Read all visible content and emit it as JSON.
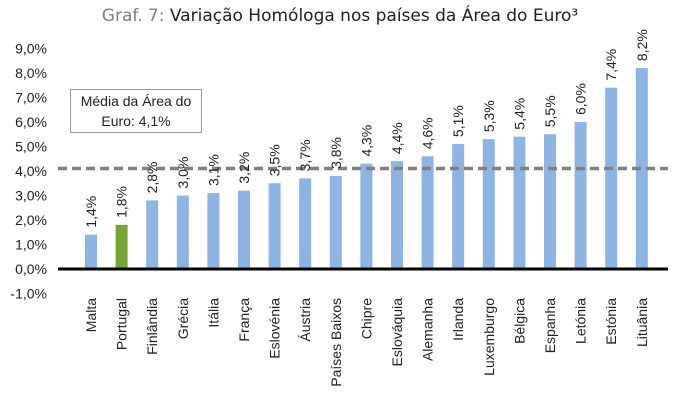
{
  "title": {
    "lead": "Graf. 7:",
    "main": "Variação Homóloga nos países da Área do Euro³"
  },
  "reference": {
    "value": 4.1,
    "label_line1": "Média da Área do",
    "label_line2": "Euro: 4,1%"
  },
  "colors": {
    "bar": "#8eb4e3",
    "highlight": "#77a432",
    "reference_line": "#808080",
    "axis": "#000000",
    "grid": "#d9d9d9"
  },
  "chart_data": {
    "type": "bar",
    "title": "Variação Homóloga nos países da Área do Euro³",
    "categories": [
      "Malta",
      "Portugal",
      "Finlândia",
      "Grécia",
      "Itália",
      "França",
      "Eslovénia",
      "Áustria",
      "Países Baixos",
      "Chipre",
      "Eslováquia",
      "Alemanha",
      "Irlanda",
      "Luxemburgo",
      "Bélgica",
      "Espanha",
      "Letónia",
      "Estónia",
      "Lituânia"
    ],
    "values": [
      1.4,
      1.8,
      2.8,
      3.0,
      3.1,
      3.2,
      3.5,
      3.7,
      3.8,
      4.3,
      4.4,
      4.6,
      5.1,
      5.3,
      5.4,
      5.5,
      6.0,
      7.4,
      8.2
    ],
    "value_labels": [
      "1,4%",
      "1,8%",
      "2,8%",
      "3,0%",
      "3,1%",
      "3,2%",
      "3,5%",
      "3,7%",
      "3,8%",
      "4,3%",
      "4,4%",
      "4,6%",
      "5,1%",
      "5,3%",
      "5,4%",
      "5,5%",
      "6,0%",
      "7,4%",
      "8,2%"
    ],
    "highlight_category": "Portugal",
    "yticks": [
      -1,
      0,
      1,
      2,
      3,
      4,
      5,
      6,
      7,
      8,
      9
    ],
    "ytick_labels": [
      "-1,0%",
      "0,0%",
      "1,0%",
      "2,0%",
      "3,0%",
      "4,0%",
      "5,0%",
      "6,0%",
      "7,0%",
      "8,0%",
      "9,0%"
    ],
    "ylim": [
      -1,
      9
    ],
    "xlabel": "",
    "ylabel": "",
    "grid": false,
    "reference_line": {
      "value": 4.1,
      "style": "dashed"
    }
  }
}
